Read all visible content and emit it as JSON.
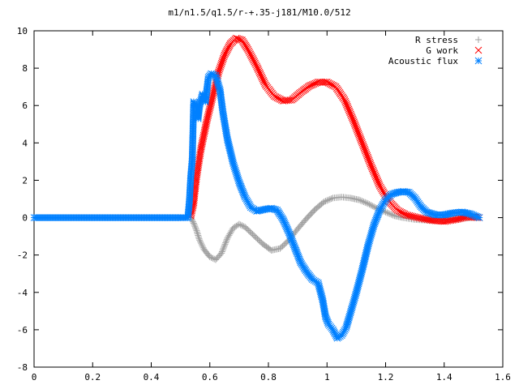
{
  "chart_data": {
    "type": "scatter",
    "title": "m1/n1.5/q1.5/r-+.35-j181/M10.0/512",
    "xlabel": "",
    "ylabel": "",
    "xlim": [
      0,
      1.6
    ],
    "ylim": [
      -8,
      10
    ],
    "xticks": [
      "0",
      "0.2",
      "0.4",
      "0.6",
      "0.8",
      "1",
      "1.2",
      "1.4",
      "1.6"
    ],
    "yticks": [
      "-8",
      "-6",
      "-4",
      "-2",
      "0",
      "2",
      "4",
      "6",
      "8",
      "10"
    ],
    "grid": false,
    "legend_position": "top-right",
    "series": [
      {
        "name": "R stress",
        "marker": "plus",
        "color": "#a0a0a0",
        "points": [
          [
            0.535,
            0.0
          ],
          [
            0.545,
            -0.3
          ],
          [
            0.555,
            -0.7
          ],
          [
            0.565,
            -1.2
          ],
          [
            0.58,
            -1.7
          ],
          [
            0.6,
            -2.1
          ],
          [
            0.62,
            -2.25
          ],
          [
            0.64,
            -1.9
          ],
          [
            0.66,
            -1.1
          ],
          [
            0.68,
            -0.55
          ],
          [
            0.7,
            -0.35
          ],
          [
            0.72,
            -0.5
          ],
          [
            0.75,
            -0.95
          ],
          [
            0.78,
            -1.4
          ],
          [
            0.81,
            -1.75
          ],
          [
            0.84,
            -1.65
          ],
          [
            0.87,
            -1.2
          ],
          [
            0.9,
            -0.6
          ],
          [
            0.93,
            -0.05
          ],
          [
            0.96,
            0.45
          ],
          [
            0.99,
            0.85
          ],
          [
            1.02,
            1.05
          ],
          [
            1.05,
            1.1
          ],
          [
            1.08,
            1.05
          ],
          [
            1.11,
            0.95
          ],
          [
            1.14,
            0.75
          ],
          [
            1.17,
            0.5
          ],
          [
            1.2,
            0.3
          ],
          [
            1.23,
            0.1
          ],
          [
            1.26,
            0.0
          ],
          [
            1.3,
            -0.1
          ],
          [
            1.35,
            -0.15
          ],
          [
            1.4,
            -0.12
          ],
          [
            1.45,
            -0.05
          ],
          [
            1.5,
            0.0
          ],
          [
            1.52,
            0.0
          ]
        ]
      },
      {
        "name": "G work",
        "marker": "cross",
        "color": "#ff0000",
        "points": [
          [
            0.535,
            0.1
          ],
          [
            0.545,
            0.8
          ],
          [
            0.555,
            2.2
          ],
          [
            0.57,
            3.7
          ],
          [
            0.59,
            5.2
          ],
          [
            0.61,
            6.5
          ],
          [
            0.63,
            7.8
          ],
          [
            0.65,
            8.7
          ],
          [
            0.67,
            9.3
          ],
          [
            0.69,
            9.6
          ],
          [
            0.71,
            9.5
          ],
          [
            0.73,
            9.0
          ],
          [
            0.76,
            8.1
          ],
          [
            0.79,
            7.1
          ],
          [
            0.82,
            6.5
          ],
          [
            0.85,
            6.25
          ],
          [
            0.88,
            6.3
          ],
          [
            0.91,
            6.7
          ],
          [
            0.94,
            7.05
          ],
          [
            0.97,
            7.25
          ],
          [
            1.0,
            7.25
          ],
          [
            1.03,
            7.0
          ],
          [
            1.06,
            6.3
          ],
          [
            1.09,
            5.2
          ],
          [
            1.12,
            4.0
          ],
          [
            1.15,
            2.8
          ],
          [
            1.18,
            1.7
          ],
          [
            1.21,
            0.9
          ],
          [
            1.24,
            0.4
          ],
          [
            1.27,
            0.15
          ],
          [
            1.31,
            0.0
          ],
          [
            1.36,
            -0.15
          ],
          [
            1.4,
            -0.2
          ],
          [
            1.44,
            -0.1
          ],
          [
            1.48,
            0.05
          ],
          [
            1.52,
            0.0
          ]
        ]
      },
      {
        "name": "Acoustic flux",
        "marker": "star",
        "color": "#0080ff",
        "points": [
          [
            0.0,
            0.0
          ],
          [
            0.05,
            0.0
          ],
          [
            0.1,
            0.0
          ],
          [
            0.15,
            0.0
          ],
          [
            0.2,
            0.0
          ],
          [
            0.25,
            0.0
          ],
          [
            0.3,
            0.0
          ],
          [
            0.35,
            0.0
          ],
          [
            0.4,
            0.0
          ],
          [
            0.45,
            0.0
          ],
          [
            0.5,
            0.0
          ],
          [
            0.525,
            0.0
          ],
          [
            0.53,
            0.8
          ],
          [
            0.535,
            2.2
          ],
          [
            0.54,
            3.1
          ],
          [
            0.545,
            6.2
          ],
          [
            0.555,
            5.9
          ],
          [
            0.56,
            5.3
          ],
          [
            0.565,
            6.0
          ],
          [
            0.575,
            6.6
          ],
          [
            0.585,
            6.2
          ],
          [
            0.595,
            7.5
          ],
          [
            0.605,
            7.7
          ],
          [
            0.62,
            7.6
          ],
          [
            0.635,
            6.8
          ],
          [
            0.645,
            5.6
          ],
          [
            0.66,
            4.2
          ],
          [
            0.68,
            2.9
          ],
          [
            0.7,
            1.9
          ],
          [
            0.72,
            1.1
          ],
          [
            0.74,
            0.55
          ],
          [
            0.76,
            0.35
          ],
          [
            0.79,
            0.45
          ],
          [
            0.81,
            0.5
          ],
          [
            0.83,
            0.4
          ],
          [
            0.85,
            -0.1
          ],
          [
            0.87,
            -0.8
          ],
          [
            0.89,
            -1.6
          ],
          [
            0.91,
            -2.4
          ],
          [
            0.93,
            -2.9
          ],
          [
            0.95,
            -3.3
          ],
          [
            0.97,
            -3.5
          ],
          [
            0.985,
            -4.4
          ],
          [
            0.995,
            -5.3
          ],
          [
            1.005,
            -5.7
          ],
          [
            1.02,
            -6.0
          ],
          [
            1.035,
            -6.45
          ],
          [
            1.05,
            -6.3
          ],
          [
            1.065,
            -5.9
          ],
          [
            1.08,
            -5.1
          ],
          [
            1.1,
            -4.0
          ],
          [
            1.12,
            -2.8
          ],
          [
            1.14,
            -1.5
          ],
          [
            1.16,
            -0.4
          ],
          [
            1.18,
            0.4
          ],
          [
            1.2,
            0.95
          ],
          [
            1.22,
            1.25
          ],
          [
            1.24,
            1.35
          ],
          [
            1.26,
            1.4
          ],
          [
            1.28,
            1.35
          ],
          [
            1.3,
            1.05
          ],
          [
            1.32,
            0.6
          ],
          [
            1.34,
            0.3
          ],
          [
            1.37,
            0.15
          ],
          [
            1.4,
            0.15
          ],
          [
            1.43,
            0.25
          ],
          [
            1.46,
            0.3
          ],
          [
            1.49,
            0.2
          ],
          [
            1.52,
            0.0
          ]
        ]
      }
    ]
  }
}
